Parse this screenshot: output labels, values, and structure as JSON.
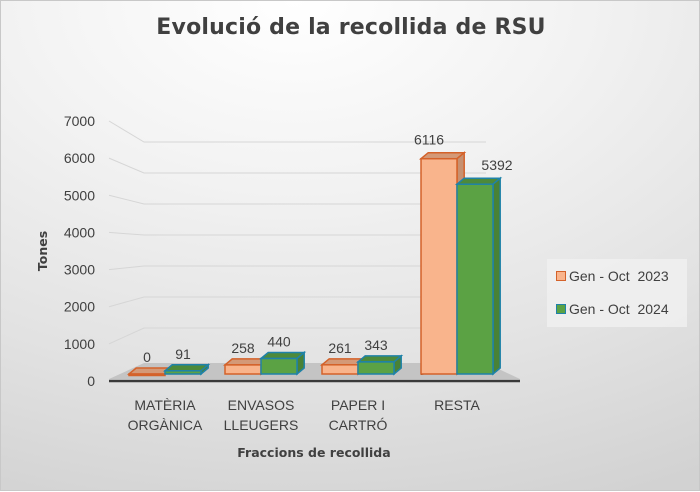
{
  "chart_data": {
    "type": "bar",
    "subtype": "3d-clustered-column",
    "title": "Evolució de la recollida de RSU",
    "xlabel": "Fraccions de recollida",
    "ylabel": "Tones",
    "ylim": [
      0,
      7000
    ],
    "yticks": [
      0,
      1000,
      2000,
      3000,
      4000,
      5000,
      6000,
      7000
    ],
    "grid": true,
    "legend_position": "right",
    "categories": [
      "MATÈRIA ORGÀNICA",
      "ENVASOS LLEUGERS",
      "PAPER I CARTRÓ",
      "RESTA"
    ],
    "category_lines": [
      [
        "MATÈRIA",
        "ORGÀNICA"
      ],
      [
        "ENVASOS",
        "LLEUGERS"
      ],
      [
        "PAPER I",
        "CARTRÓ"
      ],
      [
        "RESTA"
      ]
    ],
    "series": [
      {
        "name": "Gen - Oct  2023",
        "values": [
          0,
          258,
          261,
          6116
        ],
        "color": "#F9B48C",
        "edge": "#D4622A"
      },
      {
        "name": "Gen - Oct  2024",
        "values": [
          91,
          440,
          343,
          5392
        ],
        "color": "#5BA244",
        "edge": "#1F82A8"
      }
    ]
  },
  "legend": {
    "items": [
      {
        "label": "Gen - Oct  2023",
        "color": "#F9B48C",
        "edge": "#D4622A"
      },
      {
        "label": "Gen - Oct  2024",
        "color": "#5BA244",
        "edge": "#1F82A8"
      }
    ]
  }
}
